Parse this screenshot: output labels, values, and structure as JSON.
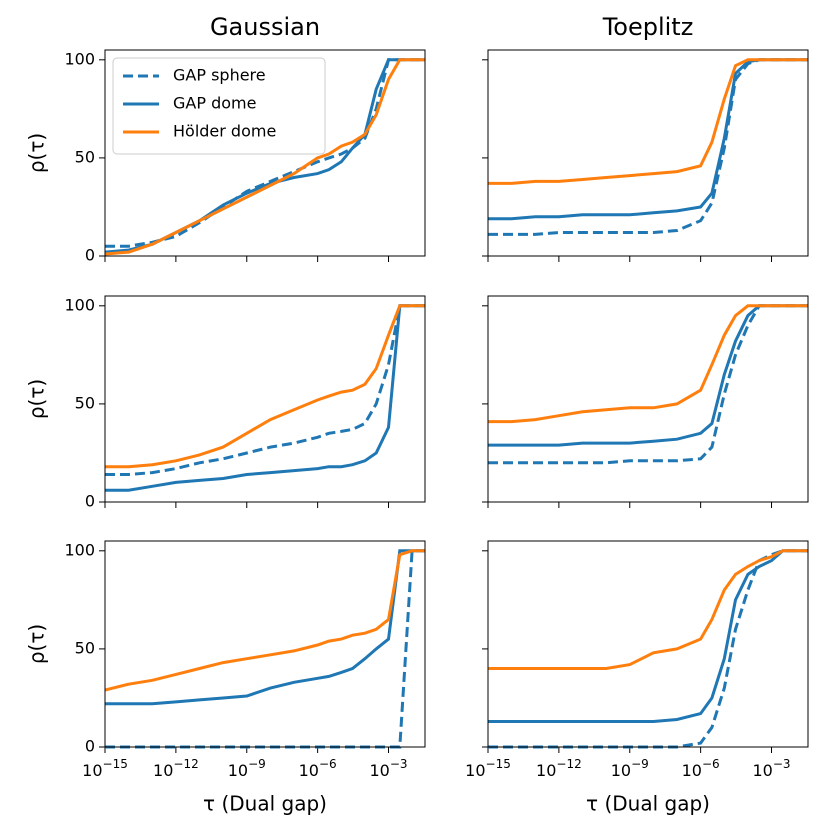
{
  "chart_data": [
    {
      "type": "line",
      "title": "Gaussian",
      "ylabel": "ρ(τ)",
      "log_x": true,
      "legend": "upper left",
      "x": [
        1e-15,
        1e-14,
        1e-13,
        1e-12,
        1e-11,
        1e-10,
        1e-09,
        1e-08,
        1e-07,
        1e-06,
        3e-06,
        1e-05,
        3e-05,
        0.0001,
        0.0003,
        0.001,
        0.003,
        0.01,
        0.035
      ],
      "xlim": [
        1e-15,
        0.035
      ],
      "ylim": [
        0,
        105
      ],
      "xticks": [
        1e-15,
        1e-12,
        1e-09,
        1e-06,
        0.001
      ],
      "yticks": [
        0,
        50,
        100
      ],
      "ytick_labels": true,
      "series": [
        {
          "name": "GAP sphere",
          "color": "#1f77b4",
          "linestyle": "dashed",
          "values": [
            5,
            5,
            7,
            10,
            17,
            25,
            33,
            38,
            43,
            48,
            50,
            52,
            55,
            60,
            75,
            100,
            100,
            100,
            100
          ]
        },
        {
          "name": "GAP dome",
          "color": "#1f77b4",
          "linestyle": "solid",
          "values": [
            2,
            3,
            6,
            12,
            18,
            26,
            32,
            37,
            40,
            42,
            44,
            48,
            55,
            62,
            85,
            100,
            100,
            100,
            100
          ]
        },
        {
          "name": "Hölder dome",
          "color": "#ff7f0e",
          "linestyle": "solid",
          "values": [
            1,
            2,
            6,
            12,
            18,
            24,
            30,
            36,
            42,
            50,
            52,
            56,
            58,
            62,
            72,
            90,
            100,
            100,
            100
          ]
        }
      ]
    },
    {
      "type": "line",
      "title": "Toeplitz",
      "log_x": true,
      "x": [
        1e-15,
        1e-14,
        1e-13,
        1e-12,
        1e-11,
        1e-10,
        1e-09,
        1e-08,
        1e-07,
        1e-06,
        3e-06,
        1e-05,
        3e-05,
        0.0001,
        0.0003,
        0.001,
        0.003,
        0.01,
        0.035
      ],
      "xlim": [
        1e-15,
        0.035
      ],
      "ylim": [
        0,
        105
      ],
      "xticks": [
        1e-15,
        1e-12,
        1e-09,
        1e-06,
        0.001
      ],
      "yticks": [
        0,
        50,
        100
      ],
      "ytick_labels": false,
      "series": [
        {
          "color": "#1f77b4",
          "linestyle": "dashed",
          "values": [
            11,
            11,
            11,
            12,
            12,
            12,
            12,
            12,
            13,
            18,
            27,
            55,
            90,
            98,
            100,
            100,
            100,
            100,
            100
          ]
        },
        {
          "color": "#1f77b4",
          "linestyle": "solid",
          "values": [
            19,
            19,
            20,
            20,
            21,
            21,
            21,
            22,
            23,
            25,
            32,
            60,
            93,
            99,
            100,
            100,
            100,
            100,
            100
          ]
        },
        {
          "color": "#ff7f0e",
          "linestyle": "solid",
          "values": [
            37,
            37,
            38,
            38,
            39,
            40,
            41,
            42,
            43,
            46,
            58,
            80,
            97,
            100,
            100,
            100,
            100,
            100,
            100
          ]
        }
      ]
    },
    {
      "type": "line",
      "ylabel": "ρ(τ)",
      "log_x": true,
      "x": [
        1e-15,
        1e-14,
        1e-13,
        1e-12,
        1e-11,
        1e-10,
        1e-09,
        1e-08,
        1e-07,
        1e-06,
        3e-06,
        1e-05,
        3e-05,
        0.0001,
        0.0003,
        0.001,
        0.003,
        0.01,
        0.035
      ],
      "xlim": [
        1e-15,
        0.035
      ],
      "ylim": [
        0,
        105
      ],
      "xticks": [
        1e-15,
        1e-12,
        1e-09,
        1e-06,
        0.001
      ],
      "yticks": [
        0,
        50,
        100
      ],
      "ytick_labels": true,
      "series": [
        {
          "color": "#1f77b4",
          "linestyle": "dashed",
          "values": [
            14,
            14,
            15,
            17,
            20,
            22,
            25,
            28,
            30,
            33,
            35,
            36,
            37,
            40,
            50,
            70,
            100,
            100,
            100
          ]
        },
        {
          "color": "#1f77b4",
          "linestyle": "solid",
          "values": [
            6,
            6,
            8,
            10,
            11,
            12,
            14,
            15,
            16,
            17,
            18,
            18,
            19,
            21,
            25,
            38,
            100,
            100,
            100
          ]
        },
        {
          "color": "#ff7f0e",
          "linestyle": "solid",
          "values": [
            18,
            18,
            19,
            21,
            24,
            28,
            35,
            42,
            47,
            52,
            54,
            56,
            57,
            60,
            68,
            85,
            100,
            100,
            100
          ]
        }
      ]
    },
    {
      "type": "line",
      "log_x": true,
      "x": [
        1e-15,
        1e-14,
        1e-13,
        1e-12,
        1e-11,
        1e-10,
        1e-09,
        1e-08,
        1e-07,
        1e-06,
        3e-06,
        1e-05,
        3e-05,
        0.0001,
        0.0003,
        0.001,
        0.003,
        0.01,
        0.035
      ],
      "xlim": [
        1e-15,
        0.035
      ],
      "ylim": [
        0,
        105
      ],
      "xticks": [
        1e-15,
        1e-12,
        1e-09,
        1e-06,
        0.001
      ],
      "yticks": [
        0,
        50,
        100
      ],
      "ytick_labels": false,
      "series": [
        {
          "color": "#1f77b4",
          "linestyle": "dashed",
          "values": [
            20,
            20,
            20,
            20,
            20,
            20,
            21,
            21,
            21,
            22,
            28,
            55,
            75,
            90,
            100,
            100,
            100,
            100,
            100
          ]
        },
        {
          "color": "#1f77b4",
          "linestyle": "solid",
          "values": [
            29,
            29,
            29,
            29,
            30,
            30,
            30,
            31,
            32,
            35,
            40,
            65,
            82,
            95,
            100,
            100,
            100,
            100,
            100
          ]
        },
        {
          "color": "#ff7f0e",
          "linestyle": "solid",
          "values": [
            41,
            41,
            42,
            44,
            46,
            47,
            48,
            48,
            50,
            57,
            70,
            85,
            95,
            100,
            100,
            100,
            100,
            100,
            100
          ]
        }
      ]
    },
    {
      "type": "line",
      "ylabel": "ρ(τ)",
      "xlabel": "τ (Dual gap)",
      "log_x": true,
      "x": [
        1e-15,
        1e-14,
        1e-13,
        1e-12,
        1e-11,
        1e-10,
        1e-09,
        1e-08,
        1e-07,
        1e-06,
        3e-06,
        1e-05,
        3e-05,
        0.0001,
        0.0003,
        0.001,
        0.003,
        0.01,
        0.035
      ],
      "xlim": [
        1e-15,
        0.035
      ],
      "ylim": [
        0,
        105
      ],
      "xticks": [
        {
          "value": 1e-15,
          "label": "10^−15"
        },
        {
          "value": 1e-12,
          "label": "10^−12"
        },
        {
          "value": 1e-09,
          "label": "10^−9"
        },
        {
          "value": 1e-06,
          "label": "10^−6"
        },
        {
          "value": 0.001,
          "label": "10^−3"
        }
      ],
      "yticks": [
        0,
        50,
        100
      ],
      "ytick_labels": true,
      "series": [
        {
          "color": "#1f77b4",
          "linestyle": "dashed",
          "values": [
            0,
            0,
            0,
            0,
            0,
            0,
            0,
            0,
            0,
            0,
            0,
            0,
            0,
            0,
            0,
            0,
            0,
            100,
            100
          ]
        },
        {
          "color": "#1f77b4",
          "linestyle": "solid",
          "values": [
            22,
            22,
            22,
            23,
            24,
            25,
            26,
            30,
            33,
            35,
            36,
            38,
            40,
            45,
            50,
            55,
            100,
            100,
            100
          ]
        },
        {
          "color": "#ff7f0e",
          "linestyle": "solid",
          "values": [
            29,
            32,
            34,
            37,
            40,
            43,
            45,
            47,
            49,
            52,
            54,
            55,
            57,
            58,
            60,
            65,
            98,
            100,
            100
          ]
        }
      ]
    },
    {
      "type": "line",
      "xlabel": "τ (Dual gap)",
      "log_x": true,
      "x": [
        1e-15,
        1e-14,
        1e-13,
        1e-12,
        1e-11,
        1e-10,
        1e-09,
        1e-08,
        1e-07,
        1e-06,
        3e-06,
        1e-05,
        3e-05,
        0.0001,
        0.0003,
        0.001,
        0.003,
        0.01,
        0.035
      ],
      "xlim": [
        1e-15,
        0.035
      ],
      "ylim": [
        0,
        105
      ],
      "xticks": [
        {
          "value": 1e-15,
          "label": "10^−15"
        },
        {
          "value": 1e-12,
          "label": "10^−12"
        },
        {
          "value": 1e-09,
          "label": "10^−9"
        },
        {
          "value": 1e-06,
          "label": "10^−6"
        },
        {
          "value": 0.001,
          "label": "10^−3"
        }
      ],
      "yticks": [
        0,
        50,
        100
      ],
      "ytick_labels": false,
      "series": [
        {
          "color": "#1f77b4",
          "linestyle": "dashed",
          "values": [
            0,
            0,
            0,
            0,
            0,
            0,
            0,
            0,
            0,
            2,
            10,
            30,
            60,
            80,
            95,
            98,
            100,
            100,
            100
          ]
        },
        {
          "color": "#1f77b4",
          "linestyle": "solid",
          "values": [
            13,
            13,
            13,
            13,
            13,
            13,
            13,
            13,
            14,
            17,
            25,
            45,
            75,
            88,
            92,
            95,
            100,
            100,
            100
          ]
        },
        {
          "color": "#ff7f0e",
          "linestyle": "solid",
          "values": [
            40,
            40,
            40,
            40,
            40,
            40,
            42,
            48,
            50,
            55,
            65,
            80,
            88,
            92,
            95,
            97,
            100,
            100,
            100
          ]
        }
      ]
    }
  ]
}
